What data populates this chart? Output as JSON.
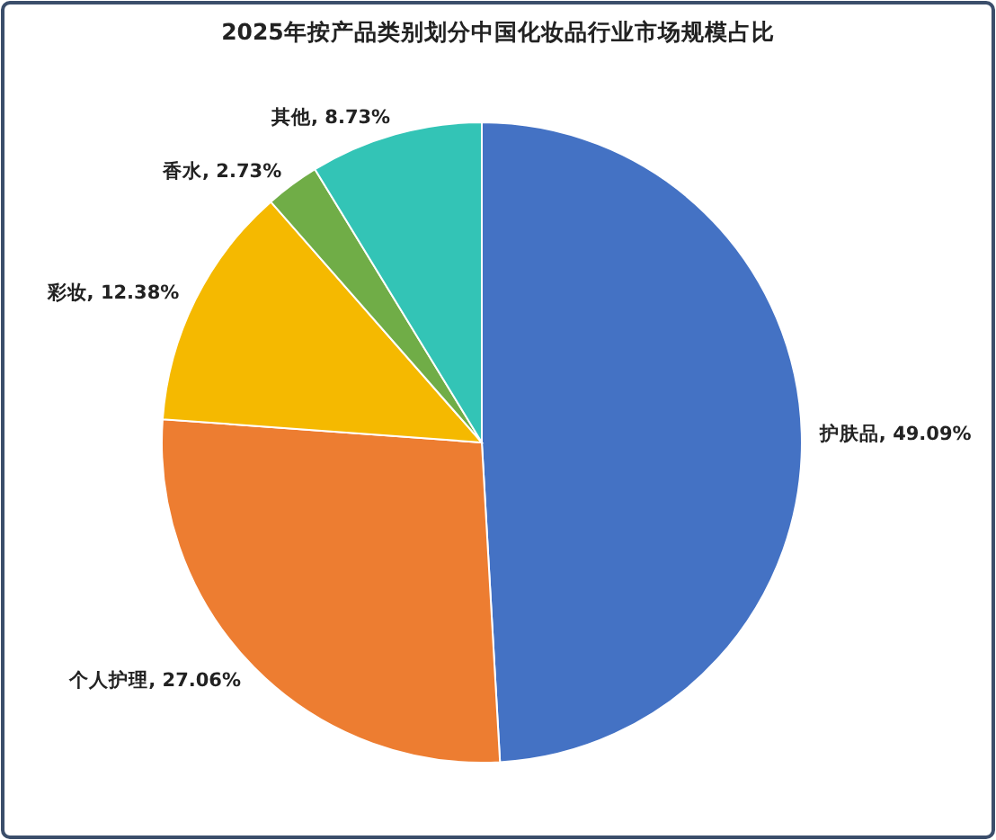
{
  "chart_data": {
    "type": "pie",
    "title": "2025年按产品类别划分中国化妆品行业市场规模占比",
    "categories": [
      "护肤品",
      "个人护理",
      "彩妆",
      "香水",
      "其他"
    ],
    "values": [
      49.09,
      27.06,
      12.38,
      2.73,
      8.73
    ],
    "value_labels": [
      "49.09%",
      "27.06%",
      "12.38%",
      "2.73%",
      "8.73%"
    ],
    "colors": [
      "#4472c4",
      "#ed7d31",
      "#f5b900",
      "#70ad47",
      "#33c4b6"
    ]
  }
}
